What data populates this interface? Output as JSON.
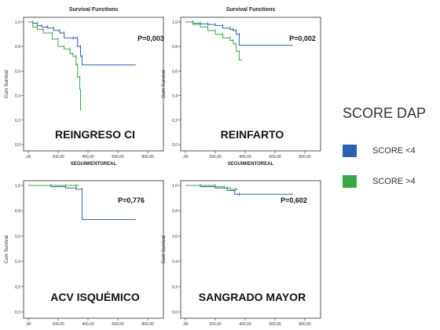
{
  "legend": {
    "title": "SCORE DAP",
    "items": [
      {
        "label": "SCORE <4",
        "color": "#2f5fb3"
      },
      {
        "label": "SCORE >4",
        "color": "#3aa64a"
      }
    ]
  },
  "chart_data": [
    {
      "type": "line",
      "title": "Survival Functions",
      "xlabel": "SEGUIMIENTOREAL",
      "ylabel": "Cum Survival",
      "outcome_label": "REINGRESO CI",
      "p_value": "P=0,003",
      "xlim": [
        0,
        800
      ],
      "ylim": [
        0,
        1
      ],
      "x_ticks": [
        ",00",
        "200,00",
        "400,00",
        "600,00",
        "800,00"
      ],
      "y_ticks": [
        "0,0",
        "0,2",
        "0,4",
        "0,6",
        "0,8",
        "1,0"
      ],
      "series": [
        {
          "name": "SCORE <4",
          "color": "#2f5fb3",
          "x": [
            0,
            30,
            60,
            90,
            130,
            170,
            210,
            240,
            300,
            330,
            350,
            360,
            720
          ],
          "y": [
            1.0,
            0.99,
            0.97,
            0.96,
            0.95,
            0.93,
            0.91,
            0.87,
            0.87,
            0.8,
            0.72,
            0.65,
            0.65
          ]
        },
        {
          "name": "SCORE >4",
          "color": "#3aa64a",
          "x": [
            0,
            30,
            60,
            100,
            160,
            200,
            240,
            280,
            300,
            320,
            330,
            345,
            350
          ],
          "y": [
            1.0,
            0.96,
            0.94,
            0.91,
            0.86,
            0.8,
            0.78,
            0.74,
            0.72,
            0.65,
            0.55,
            0.45,
            0.28
          ]
        }
      ]
    },
    {
      "type": "line",
      "title": "Survival Functions",
      "xlabel": "SEGUIMIENTOREAL",
      "ylabel": "Cum Survival",
      "outcome_label": "REINFARTO",
      "p_value": "P=0,002",
      "xlim": [
        0,
        800
      ],
      "ylim": [
        0,
        1
      ],
      "x_ticks": [
        ",00",
        "200,00",
        "400,00",
        "600,00",
        "800,00"
      ],
      "y_ticks": [
        "0,0",
        "0,2",
        "0,4",
        "0,6",
        "0,8",
        "1,0"
      ],
      "series": [
        {
          "name": "SCORE <4",
          "color": "#2f5fb3",
          "x": [
            0,
            50,
            100,
            150,
            200,
            250,
            300,
            320,
            340,
            360,
            720
          ],
          "y": [
            1.0,
            0.99,
            0.985,
            0.98,
            0.97,
            0.95,
            0.94,
            0.93,
            0.9,
            0.81,
            0.81
          ]
        },
        {
          "name": "SCORE >4",
          "color": "#3aa64a",
          "x": [
            0,
            50,
            100,
            150,
            200,
            250,
            300,
            320,
            340,
            360,
            380
          ],
          "y": [
            1.0,
            0.98,
            0.96,
            0.93,
            0.9,
            0.87,
            0.85,
            0.82,
            0.76,
            0.69,
            0.69
          ]
        }
      ]
    },
    {
      "type": "line",
      "title": "",
      "xlabel": "",
      "ylabel": "Cum Survival",
      "outcome_label": "ACV ISQUÉMICO",
      "p_value": "P=0,776",
      "xlim": [
        0,
        800
      ],
      "ylim": [
        0,
        1
      ],
      "x_ticks": [
        ",00",
        "200,00",
        "400,00",
        "600,00",
        "800,00"
      ],
      "y_ticks": [
        "0,0",
        "0,2",
        "0,4",
        "0,6",
        "0,8",
        "1,0"
      ],
      "series": [
        {
          "name": "SCORE <4",
          "color": "#2f5fb3",
          "x": [
            0,
            150,
            250,
            320,
            360,
            720
          ],
          "y": [
            1.0,
            0.99,
            0.98,
            0.97,
            0.73,
            0.73
          ]
        },
        {
          "name": "SCORE >4",
          "color": "#3aa64a",
          "x": [
            0,
            150,
            250,
            320,
            340
          ],
          "y": [
            1.0,
            1.0,
            1.0,
            1.0,
            1.0
          ]
        }
      ]
    },
    {
      "type": "line",
      "title": "",
      "xlabel": "",
      "ylabel": "Cum Survival",
      "outcome_label": "SANGRADO MAYOR",
      "p_value": "P=0,602",
      "xlim": [
        0,
        800
      ],
      "ylim": [
        0,
        1
      ],
      "x_ticks": [
        ",00",
        "200,00",
        "400,00",
        "600,00",
        "800,00"
      ],
      "y_ticks": [
        "0,0",
        "0,2",
        "0,4",
        "0,6",
        "0,8",
        "1,0"
      ],
      "series": [
        {
          "name": "SCORE <4",
          "color": "#2f5fb3",
          "x": [
            0,
            100,
            200,
            280,
            330,
            360,
            720
          ],
          "y": [
            1.0,
            0.99,
            0.98,
            0.96,
            0.93,
            0.93,
            0.93
          ]
        },
        {
          "name": "SCORE >4",
          "color": "#3aa64a",
          "x": [
            0,
            100,
            200,
            260,
            300,
            340,
            350
          ],
          "y": [
            1.0,
            1.0,
            0.99,
            0.98,
            0.97,
            0.97,
            0.97
          ]
        }
      ]
    }
  ]
}
